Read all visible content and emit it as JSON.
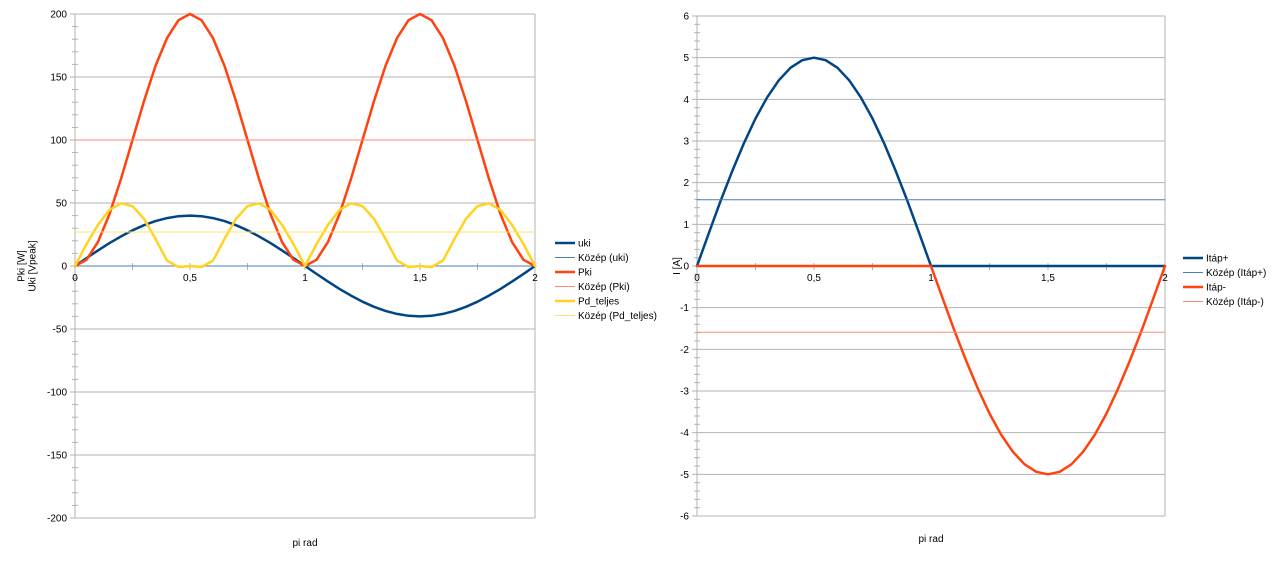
{
  "chart_data": [
    {
      "type": "line",
      "xlabel": "pi rad",
      "ylabel_lines": [
        "Pki [W]",
        "Uki [Vpeak]"
      ],
      "xlim": [
        0,
        2
      ],
      "ylim": [
        -200,
        200
      ],
      "x_ticks": [
        0,
        0.5,
        1,
        1.5,
        2
      ],
      "x_tick_labels": [
        "0",
        "0,5",
        "1",
        "1,5",
        "2"
      ],
      "y_ticks": [
        -200,
        -150,
        -100,
        -50,
        0,
        50,
        100,
        150,
        200
      ],
      "y_tick_labels": [
        "-200",
        "-150",
        "-100",
        "-50",
        "0",
        "50",
        "100",
        "150",
        "200"
      ],
      "grid": "horizontal",
      "legend_position": "right",
      "x": [
        0,
        0.05,
        0.1,
        0.15,
        0.2,
        0.25,
        0.3,
        0.35,
        0.4,
        0.45,
        0.5,
        0.55,
        0.6,
        0.65,
        0.7,
        0.75,
        0.8,
        0.85,
        0.9,
        0.95,
        1,
        1.05,
        1.1,
        1.15,
        1.2,
        1.25,
        1.3,
        1.35,
        1.4,
        1.45,
        1.5,
        1.55,
        1.6,
        1.65,
        1.7,
        1.75,
        1.8,
        1.85,
        1.9,
        1.95,
        2
      ],
      "series": [
        {
          "name": "uki",
          "color": "#004586",
          "width": 2.5,
          "values": [
            0,
            6.3,
            12.4,
            18.2,
            23.5,
            28.3,
            32.4,
            35.6,
            38,
            39.5,
            40,
            39.5,
            38,
            35.6,
            32.4,
            28.3,
            23.5,
            18.2,
            12.4,
            6.3,
            0,
            -6.3,
            -12.4,
            -18.2,
            -23.5,
            -28.3,
            -32.4,
            -35.6,
            -38,
            -39.5,
            -40,
            -39.5,
            -38,
            -35.6,
            -32.4,
            -28.3,
            -23.5,
            -18.2,
            -12.4,
            -6.3,
            0
          ]
        },
        {
          "name": "Közép (uki)",
          "color": "#4a7fb3",
          "width": 1,
          "values": [
            0,
            0,
            0,
            0,
            0,
            0,
            0,
            0,
            0,
            0,
            0,
            0,
            0,
            0,
            0,
            0,
            0,
            0,
            0,
            0,
            0,
            0,
            0,
            0,
            0,
            0,
            0,
            0,
            0,
            0,
            0,
            0,
            0,
            0,
            0,
            0,
            0,
            0,
            0,
            0,
            0
          ]
        },
        {
          "name": "Pki",
          "color": "#ff420e",
          "width": 2.5,
          "values": [
            0,
            4.9,
            19.1,
            41.2,
            69.1,
            100,
            130.9,
            158.8,
            180.9,
            195.1,
            200,
            195.1,
            180.9,
            158.8,
            130.9,
            100,
            69.1,
            41.2,
            19.1,
            4.9,
            0,
            4.9,
            19.1,
            41.2,
            69.1,
            100,
            130.9,
            158.8,
            180.9,
            195.1,
            200,
            195.1,
            180.9,
            158.8,
            130.9,
            100,
            69.1,
            41.2,
            19.1,
            4.9,
            0
          ]
        },
        {
          "name": "Közép (Pki)",
          "color": "#ff8a70",
          "width": 1,
          "values": [
            100,
            100,
            100,
            100,
            100,
            100,
            100,
            100,
            100,
            100,
            100,
            100,
            100,
            100,
            100,
            100,
            100,
            100,
            100,
            100,
            100,
            100,
            100,
            100,
            100,
            100,
            100,
            100,
            100,
            100,
            100,
            100,
            100,
            100,
            100,
            100,
            100,
            100,
            100,
            100,
            100
          ]
        },
        {
          "name": "Pd_teljes",
          "color": "#ffd320",
          "width": 2.5,
          "values": [
            0,
            17.3,
            32.7,
            44.5,
            49.8,
            47.5,
            37.5,
            21.5,
            4.3,
            -0.8,
            0,
            -0.8,
            4.3,
            21.5,
            37.5,
            47.5,
            49.8,
            44.5,
            32.7,
            17.3,
            0,
            17.3,
            32.7,
            44.5,
            49.8,
            47.5,
            37.5,
            21.5,
            4.3,
            -0.8,
            0,
            -0.8,
            4.3,
            21.5,
            37.5,
            47.5,
            49.8,
            44.5,
            32.7,
            17.3,
            0
          ]
        },
        {
          "name": "Közép (Pd_teljes)",
          "color": "#ffe070",
          "width": 1,
          "values": [
            27,
            27,
            27,
            27,
            27,
            27,
            27,
            27,
            27,
            27,
            27,
            27,
            27,
            27,
            27,
            27,
            27,
            27,
            27,
            27,
            27,
            27,
            27,
            27,
            27,
            27,
            27,
            27,
            27,
            27,
            27,
            27,
            27,
            27,
            27,
            27,
            27,
            27,
            27,
            27,
            27
          ]
        }
      ]
    },
    {
      "type": "line",
      "xlabel": "pi rad",
      "ylabel_lines": [
        "I [A]"
      ],
      "xlim": [
        0,
        2
      ],
      "ylim": [
        -6,
        6
      ],
      "x_ticks": [
        0,
        0.5,
        1,
        1.5,
        2
      ],
      "x_tick_labels": [
        "0",
        "0,5",
        "1",
        "1,5",
        "2"
      ],
      "y_ticks": [
        -6,
        -5,
        -4,
        -3,
        -2,
        -1,
        0,
        1,
        2,
        3,
        4,
        5,
        6
      ],
      "y_tick_labels": [
        "-6",
        "-5",
        "-4",
        "-3",
        "-2",
        "-1",
        "0",
        "1",
        "2",
        "3",
        "4",
        "5",
        "6"
      ],
      "grid": "horizontal",
      "legend_position": "right",
      "x": [
        0,
        0.05,
        0.1,
        0.15,
        0.2,
        0.25,
        0.3,
        0.35,
        0.4,
        0.45,
        0.5,
        0.55,
        0.6,
        0.65,
        0.7,
        0.75,
        0.8,
        0.85,
        0.9,
        0.95,
        1,
        1.05,
        1.1,
        1.15,
        1.2,
        1.25,
        1.3,
        1.35,
        1.4,
        1.45,
        1.5,
        1.55,
        1.6,
        1.65,
        1.7,
        1.75,
        1.8,
        1.85,
        1.9,
        1.95,
        2
      ],
      "series": [
        {
          "name": "Itáp+",
          "color": "#004586",
          "width": 2.5,
          "values": [
            0,
            0.78,
            1.55,
            2.27,
            2.94,
            3.54,
            4.05,
            4.46,
            4.76,
            4.94,
            5,
            4.94,
            4.76,
            4.46,
            4.05,
            3.54,
            2.94,
            2.27,
            1.55,
            0.78,
            0,
            0,
            0,
            0,
            0,
            0,
            0,
            0,
            0,
            0,
            0,
            0,
            0,
            0,
            0,
            0,
            0,
            0,
            0,
            0,
            0
          ]
        },
        {
          "name": "Közép (Itáp+)",
          "color": "#4a7fb3",
          "width": 1,
          "values": [
            1.59,
            1.59,
            1.59,
            1.59,
            1.59,
            1.59,
            1.59,
            1.59,
            1.59,
            1.59,
            1.59,
            1.59,
            1.59,
            1.59,
            1.59,
            1.59,
            1.59,
            1.59,
            1.59,
            1.59,
            1.59,
            1.59,
            1.59,
            1.59,
            1.59,
            1.59,
            1.59,
            1.59,
            1.59,
            1.59,
            1.59,
            1.59,
            1.59,
            1.59,
            1.59,
            1.59,
            1.59,
            1.59,
            1.59,
            1.59,
            1.59
          ]
        },
        {
          "name": "Itáp-",
          "color": "#ff420e",
          "width": 2.5,
          "values": [
            0,
            0,
            0,
            0,
            0,
            0,
            0,
            0,
            0,
            0,
            0,
            0,
            0,
            0,
            0,
            0,
            0,
            0,
            0,
            0,
            0,
            -0.78,
            -1.55,
            -2.27,
            -2.94,
            -3.54,
            -4.05,
            -4.46,
            -4.76,
            -4.94,
            -5,
            -4.94,
            -4.76,
            -4.46,
            -4.05,
            -3.54,
            -2.94,
            -2.27,
            -1.55,
            -0.78,
            0
          ]
        },
        {
          "name": "Közép (Itáp-)",
          "color": "#ff8a70",
          "width": 1,
          "values": [
            -1.59,
            -1.59,
            -1.59,
            -1.59,
            -1.59,
            -1.59,
            -1.59,
            -1.59,
            -1.59,
            -1.59,
            -1.59,
            -1.59,
            -1.59,
            -1.59,
            -1.59,
            -1.59,
            -1.59,
            -1.59,
            -1.59,
            -1.59,
            -1.59,
            -1.59,
            -1.59,
            -1.59,
            -1.59,
            -1.59,
            -1.59,
            -1.59,
            -1.59,
            -1.59,
            -1.59,
            -1.59,
            -1.59,
            -1.59,
            -1.59,
            -1.59,
            -1.59,
            -1.59,
            -1.59,
            -1.59,
            -1.59
          ]
        }
      ]
    }
  ]
}
